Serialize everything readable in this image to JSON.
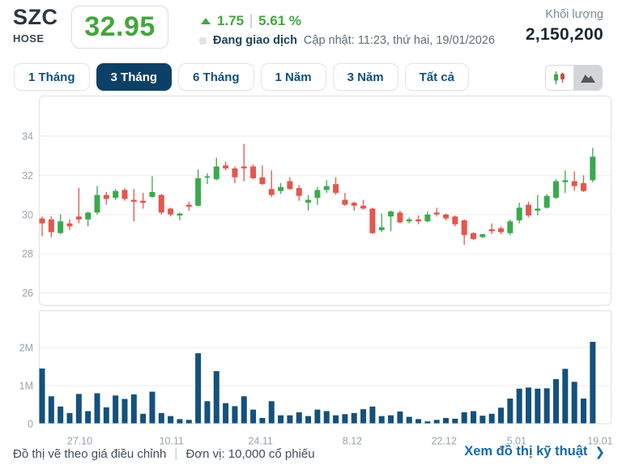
{
  "header": {
    "symbol": "SZC",
    "exchange": "HOSE",
    "price": "32.95",
    "change": "1.75",
    "change_percent": "5.61 %",
    "status": "Đang giao dịch",
    "updated": "Cập nhật: 11:23, thứ hai, 19/01/2026",
    "volume_label": "Khối lượng",
    "volume_value": "2,150,200"
  },
  "tabs": {
    "items": [
      {
        "label": "1 Tháng",
        "active": false
      },
      {
        "label": "3 Tháng",
        "active": true
      },
      {
        "label": "6 Tháng",
        "active": false
      },
      {
        "label": "1 Năm",
        "active": false
      },
      {
        "label": "3 Năm",
        "active": false
      },
      {
        "label": "Tất cả",
        "active": false
      }
    ]
  },
  "view_toggle": {
    "candlestick_icon": "candlestick-chart",
    "area_icon": "area-chart",
    "selected": "candlestick"
  },
  "footer": {
    "note_adjusted": "Đồ thị vẽ theo giá điều chỉnh",
    "note_unit": "Đơn vị: 10,000 cổ phiếu",
    "link_technical": "Xem đồ thị kỹ thuật",
    "link_chevron": "❯"
  },
  "colors": {
    "accent_green": "#45a53e",
    "candle_up": "#3ba94f",
    "candle_down": "#e2574e",
    "volume_bar": "#14517c",
    "tab_active_bg": "#0d4066",
    "tab_text": "#11507f",
    "link_blue": "#1668ac",
    "status_navy": "#1d4261",
    "muted_text": "#5f6e79",
    "axis_text": "#99a2aa",
    "grid_line": "#ededed",
    "pane_border": "#e1e5e8"
  },
  "chart_data": {
    "type": "candlestick_with_volume_bars",
    "title": "SZC 3 Tháng",
    "price_axis": {
      "ticks": [
        34,
        32,
        30,
        28,
        26
      ],
      "min": 25.4,
      "max": 36.0,
      "grid": true
    },
    "volume_axis": {
      "ticks": [
        {
          "label": "2M",
          "value": 2
        },
        {
          "label": "1M",
          "value": 1
        },
        {
          "label": "0",
          "value": 0
        }
      ],
      "unit": "10,000 cổ phiếu"
    },
    "x_labels": [
      {
        "index": 4.1,
        "label": "27.10"
      },
      {
        "index": 14.1,
        "label": "10.11"
      },
      {
        "index": 23.8,
        "label": "24.11"
      },
      {
        "index": 33.8,
        "label": "8.12"
      },
      {
        "index": 43.8,
        "label": "22.12"
      },
      {
        "index": 51.7,
        "label": "5.01"
      },
      {
        "index": 60.8,
        "label": "19.01"
      }
    ],
    "candles_ohlc": [
      [
        29.8,
        29.9,
        28.9,
        29.55
      ],
      [
        29.75,
        29.9,
        28.85,
        29.1
      ],
      [
        29.05,
        30.0,
        29.0,
        29.65
      ],
      [
        29.55,
        29.75,
        29.2,
        29.4
      ],
      [
        29.9,
        31.35,
        29.55,
        29.75
      ],
      [
        29.75,
        30.15,
        29.4,
        30.1
      ],
      [
        30.1,
        31.45,
        30.0,
        31.0
      ],
      [
        31.0,
        31.15,
        30.5,
        30.8
      ],
      [
        30.85,
        31.3,
        30.75,
        31.2
      ],
      [
        31.25,
        31.35,
        30.7,
        30.8
      ],
      [
        30.75,
        31.3,
        29.65,
        30.65
      ],
      [
        30.7,
        31.1,
        30.3,
        30.6
      ],
      [
        30.9,
        31.95,
        30.85,
        31.15
      ],
      [
        31.0,
        31.05,
        30.0,
        30.1
      ],
      [
        30.3,
        30.35,
        29.9,
        30.0
      ],
      [
        29.95,
        30.1,
        29.7,
        30.05
      ],
      [
        30.5,
        30.65,
        30.2,
        30.4
      ],
      [
        30.45,
        32.3,
        30.4,
        31.85
      ],
      [
        31.9,
        32.1,
        31.55,
        31.95
      ],
      [
        31.8,
        32.9,
        31.75,
        32.45
      ],
      [
        32.5,
        32.7,
        32.25,
        32.35
      ],
      [
        32.35,
        32.45,
        31.6,
        31.9
      ],
      [
        32.45,
        33.6,
        31.7,
        32.35
      ],
      [
        32.45,
        32.55,
        31.8,
        31.85
      ],
      [
        31.9,
        32.5,
        31.5,
        31.55
      ],
      [
        31.3,
        32.25,
        30.9,
        31.0
      ],
      [
        31.2,
        31.6,
        31.05,
        31.4
      ],
      [
        31.7,
        31.9,
        31.25,
        31.3
      ],
      [
        31.35,
        31.5,
        30.7,
        30.95
      ],
      [
        30.6,
        31.0,
        30.2,
        30.75
      ],
      [
        30.85,
        31.4,
        30.5,
        31.25
      ],
      [
        31.25,
        31.75,
        31.1,
        31.45
      ],
      [
        31.55,
        31.9,
        31.0,
        31.1
      ],
      [
        30.75,
        31.1,
        30.45,
        30.5
      ],
      [
        30.6,
        30.65,
        30.2,
        30.45
      ],
      [
        30.45,
        30.75,
        30.25,
        30.3
      ],
      [
        30.3,
        30.35,
        29.0,
        29.05
      ],
      [
        29.2,
        30.05,
        29.1,
        29.35
      ],
      [
        29.9,
        30.2,
        29.15,
        30.15
      ],
      [
        30.1,
        30.2,
        29.55,
        29.6
      ],
      [
        29.65,
        29.85,
        29.55,
        29.75
      ],
      [
        29.75,
        29.95,
        29.5,
        29.65
      ],
      [
        29.65,
        30.15,
        29.6,
        30.0
      ],
      [
        30.1,
        30.35,
        29.9,
        30.0
      ],
      [
        30.0,
        30.05,
        29.7,
        29.8
      ],
      [
        29.9,
        29.95,
        29.4,
        29.5
      ],
      [
        29.7,
        29.75,
        28.45,
        28.95
      ],
      [
        29.05,
        29.1,
        28.7,
        28.75
      ],
      [
        28.85,
        29.0,
        28.8,
        29.0
      ],
      [
        29.25,
        29.55,
        29.0,
        29.15
      ],
      [
        29.3,
        29.4,
        29.0,
        29.1
      ],
      [
        29.05,
        29.75,
        28.95,
        29.65
      ],
      [
        29.7,
        30.6,
        29.55,
        30.35
      ],
      [
        30.5,
        30.65,
        29.85,
        29.95
      ],
      [
        30.2,
        31.0,
        29.95,
        30.3
      ],
      [
        30.35,
        31.05,
        30.3,
        30.95
      ],
      [
        30.85,
        31.8,
        30.8,
        31.7
      ],
      [
        31.65,
        32.25,
        31.1,
        31.75
      ],
      [
        31.7,
        32.2,
        31.2,
        31.45
      ],
      [
        31.6,
        32.0,
        31.15,
        31.2
      ],
      [
        31.75,
        33.4,
        31.65,
        32.95
      ]
    ],
    "volumes_millions": [
      1.45,
      0.72,
      0.45,
      0.28,
      0.78,
      0.33,
      0.8,
      0.43,
      0.74,
      0.65,
      0.77,
      0.26,
      0.84,
      0.28,
      0.2,
      0.12,
      0.1,
      1.85,
      0.59,
      1.38,
      0.54,
      0.46,
      0.72,
      0.37,
      0.15,
      0.59,
      0.22,
      0.22,
      0.3,
      0.2,
      0.37,
      0.33,
      0.22,
      0.25,
      0.28,
      0.38,
      0.45,
      0.2,
      0.22,
      0.32,
      0.18,
      0.12,
      0.06,
      0.1,
      0.15,
      0.13,
      0.3,
      0.33,
      0.21,
      0.26,
      0.42,
      0.66,
      0.92,
      0.95,
      0.92,
      0.93,
      1.17,
      1.44,
      1.1,
      0.66,
      2.15
    ]
  }
}
